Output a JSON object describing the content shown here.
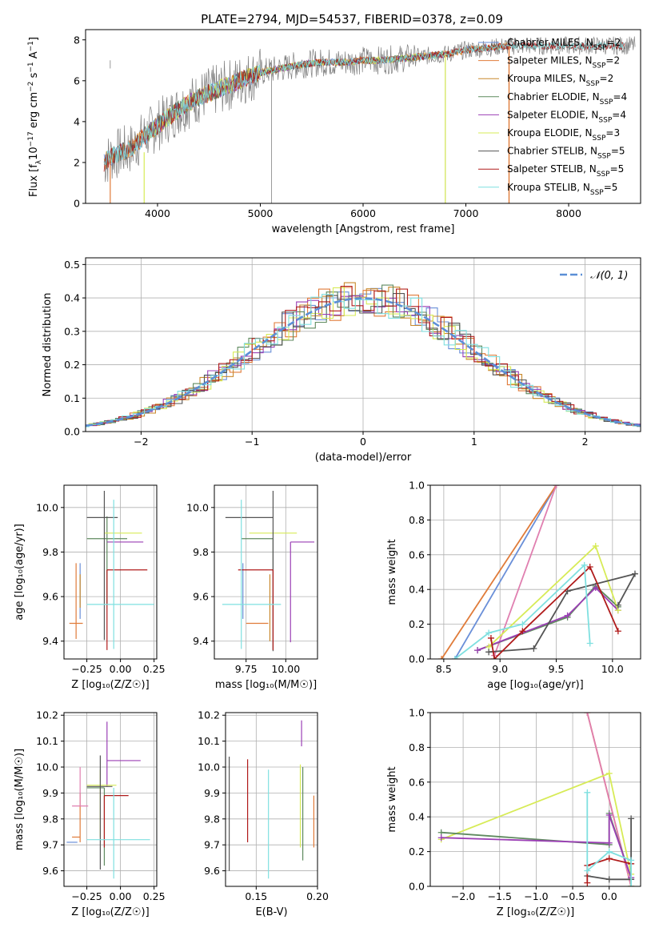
{
  "figure": {
    "title": "PLATE=2794, MJD=54537, FIBERID=0378, z=0.09",
    "colors": {
      "Chabrier MILES": "#6a8fd8",
      "Salpeter MILES": "#e07b39",
      "Kroupa MILES": "#c9892c",
      "Chabrier ELODIE": "#5f8a5f",
      "Salpeter ELODIE": "#9b3fb5",
      "Kroupa ELODIE": "#d7eb57",
      "Chabrier STELIB": "#555555",
      "Salpeter STELIB": "#b01b1b",
      "Kroupa STELIB": "#7fe0e0",
      "extra": "#e07fb0",
      "data": "#808080",
      "normal": "#5b8fd6"
    }
  },
  "chart_data": [
    {
      "id": "spectrum",
      "type": "line",
      "xlabel": "wavelength [Angstrom, rest frame]",
      "ylabel_parts": [
        "Flux [f",
        "λ",
        "10",
        "−17",
        " erg cm",
        "−2",
        " s",
        "−1",
        " A",
        "−1",
        "]"
      ],
      "xlim": [
        3300,
        8700
      ],
      "ylim": [
        0,
        8.5
      ],
      "xticks": [
        4000,
        5000,
        6000,
        7000,
        8000
      ],
      "yticks": [
        0,
        2,
        4,
        6,
        8
      ],
      "legend_location": "right",
      "legend": [
        {
          "name": "Chabrier MILES",
          "nssp": "2"
        },
        {
          "name": "Salpeter MILES",
          "nssp": "2"
        },
        {
          "name": "Kroupa MILES",
          "nssp": "2"
        },
        {
          "name": "Chabrier ELODIE",
          "nssp": "4"
        },
        {
          "name": "Salpeter ELODIE",
          "nssp": "4"
        },
        {
          "name": "Kroupa ELODIE",
          "nssp": "3"
        },
        {
          "name": "Chabrier STELIB",
          "nssp": "5"
        },
        {
          "name": "Salpeter STELIB",
          "nssp": "5"
        },
        {
          "name": "Kroupa STELIB",
          "nssp": "5"
        }
      ],
      "continuum": {
        "x": [
          3480,
          3550,
          3650,
          3750,
          3850,
          3950,
          4050,
          4150,
          4300,
          4450,
          4600,
          4800,
          5000,
          5200,
          5400,
          5600,
          5800,
          6000,
          6200,
          6400,
          6600,
          6800,
          7000,
          7200,
          7400
        ],
        "y": [
          2.0,
          2.3,
          2.5,
          2.7,
          3.2,
          3.6,
          4.0,
          4.4,
          4.9,
          5.3,
          5.6,
          6.0,
          6.4,
          6.6,
          6.8,
          6.9,
          6.9,
          7.0,
          7.0,
          7.1,
          7.2,
          7.3,
          7.5,
          7.6,
          7.7
        ]
      }
    },
    {
      "id": "residuals",
      "type": "line",
      "xlabel": "(data-model)/error",
      "ylabel": "Normed distribution",
      "xlim": [
        -2.5,
        2.5
      ],
      "ylim": [
        0,
        0.52
      ],
      "xticks": [
        -2,
        -1,
        0,
        1,
        2
      ],
      "xtick_labels": [
        "−2",
        "−1",
        "0",
        "1",
        "2"
      ],
      "yticks": [
        0.0,
        0.1,
        0.2,
        0.3,
        0.4,
        0.5
      ],
      "ytick_labels": [
        "0.0",
        "0.1",
        "0.2",
        "0.3",
        "0.4",
        "0.5"
      ],
      "grid": true,
      "legend_location": "top-right",
      "legend_label": "𝒩(0, 1)",
      "bin_width": 0.1
    },
    {
      "id": "age-vs-Z",
      "type": "scatter",
      "xlabel": "Z [log₁₀(Z/Z☉)]",
      "ylabel": "age  [log₁₀(age/yr)]",
      "xlim": [
        -0.42,
        0.27
      ],
      "ylim": [
        9.32,
        10.1
      ],
      "xticks": [
        -0.25,
        0.0,
        0.25
      ],
      "xtick_labels": [
        "−0.25",
        "0.00",
        "0.25"
      ],
      "yticks": [
        9.4,
        9.6,
        9.8,
        10.0
      ],
      "ytick_labels": [
        "9.4",
        "9.6",
        "9.8",
        "10.0"
      ],
      "points": [
        {
          "series": "Chabrier MILES",
          "x": -0.3,
          "xerr": [
            0.0,
            0.0
          ],
          "y": 9.7,
          "yerr": [
            0.2,
            0.05
          ]
        },
        {
          "series": "Salpeter MILES",
          "x": -0.33,
          "xerr": [
            0.05,
            0.05
          ],
          "y": 9.48,
          "yerr": [
            0.07,
            0.27
          ]
        },
        {
          "series": "Kroupa MILES",
          "x": -0.3,
          "xerr": [
            0.0,
            0.0
          ],
          "y": 9.6,
          "yerr": [
            0.05,
            0.1
          ]
        },
        {
          "series": "Chabrier ELODIE",
          "x": -0.1,
          "xerr": [
            0.15,
            0.15
          ],
          "y": 9.86,
          "yerr": [
            0.3,
            0.1
          ]
        },
        {
          "series": "Salpeter ELODIE",
          "x": -0.1,
          "xerr": [
            0.0,
            0.27
          ],
          "y": 9.845,
          "yerr": [
            0.0,
            0.0
          ]
        },
        {
          "series": "Kroupa ELODIE",
          "x": -0.12,
          "xerr": [
            0.0,
            0.28
          ],
          "y": 9.885,
          "yerr": [
            0.0,
            0.0
          ]
        },
        {
          "series": "Chabrier STELIB",
          "x": -0.12,
          "xerr": [
            0.13,
            0.1
          ],
          "y": 9.955,
          "yerr": [
            0.55,
            0.12
          ]
        },
        {
          "series": "Salpeter STELIB",
          "x": -0.1,
          "xerr": [
            0.0,
            0.3
          ],
          "y": 9.72,
          "yerr": [
            0.36,
            0.0
          ]
        },
        {
          "series": "Kroupa STELIB",
          "x": -0.05,
          "xerr": [
            0.2,
            0.3
          ],
          "y": 9.565,
          "yerr": [
            0.2,
            0.47
          ]
        }
      ],
      "grid": true
    },
    {
      "id": "age-vs-mass",
      "type": "scatter",
      "xlabel": "mass [log₁₀(M/M☉)]",
      "ylabel": "",
      "xlim": [
        9.55,
        10.2
      ],
      "ylim": [
        9.32,
        10.1
      ],
      "xticks": [
        9.75,
        10.0
      ],
      "xtick_labels": [
        "9.75",
        "10.00"
      ],
      "yticks": [
        9.4,
        9.6,
        9.8,
        10.0
      ],
      "ytick_labels": [
        "9.4",
        "9.6",
        "9.8",
        "10.0"
      ],
      "points": [
        {
          "series": "Chabrier MILES",
          "x": 9.73,
          "xerr": [
            0.0,
            0.0
          ],
          "y": 9.7,
          "yerr": [
            0.2,
            0.05
          ]
        },
        {
          "series": "Salpeter MILES",
          "x": 9.82,
          "xerr": [
            0.07,
            0.07
          ],
          "y": 9.48,
          "yerr": [
            0.0,
            0.0
          ]
        },
        {
          "series": "Kroupa MILES",
          "x": 9.9,
          "xerr": [
            0.0,
            0.0
          ],
          "y": 9.6,
          "yerr": [
            0.2,
            0.1
          ]
        },
        {
          "series": "Chabrier ELODIE",
          "x": 9.92,
          "xerr": [
            0.2,
            0.0
          ],
          "y": 9.86,
          "yerr": [
            0.5,
            0.0
          ]
        },
        {
          "series": "Salpeter ELODIE",
          "x": 10.03,
          "xerr": [
            0.0,
            0.15
          ],
          "y": 9.845,
          "yerr": [
            0.45,
            0.0
          ]
        },
        {
          "series": "Kroupa ELODIE",
          "x": 9.97,
          "xerr": [
            0.2,
            0.1
          ],
          "y": 9.885,
          "yerr": [
            0.0,
            0.0
          ]
        },
        {
          "series": "Chabrier STELIB",
          "x": 9.92,
          "xerr": [
            0.3,
            0.0
          ],
          "y": 9.955,
          "yerr": [
            0.6,
            0.12
          ]
        },
        {
          "series": "Salpeter STELIB",
          "x": 9.92,
          "xerr": [
            0.22,
            0.0
          ],
          "y": 9.72,
          "yerr": [
            0.36,
            0.0
          ]
        },
        {
          "series": "Kroupa STELIB",
          "x": 9.72,
          "xerr": [
            0.12,
            0.25
          ],
          "y": 9.565,
          "yerr": [
            0.2,
            0.47
          ]
        }
      ],
      "grid": true
    },
    {
      "id": "weight-vs-age",
      "type": "line",
      "xlabel": "age  [log₁₀(age/yr)]",
      "ylabel": "mass weight",
      "xlim": [
        8.38,
        10.25
      ],
      "ylim": [
        0,
        1.0
      ],
      "xticks": [
        8.5,
        9.0,
        9.5,
        10.0
      ],
      "xtick_labels": [
        "8.5",
        "9.0",
        "9.5",
        "10.0"
      ],
      "yticks": [
        0.0,
        0.2,
        0.4,
        0.6,
        0.8,
        1.0
      ],
      "ytick_labels": [
        "0.0",
        "0.2",
        "0.4",
        "0.6",
        "0.8",
        "1.0"
      ],
      "series": [
        {
          "name": "Chabrier MILES",
          "x": [
            8.6,
            9.5
          ],
          "y": [
            0.0,
            1.0
          ]
        },
        {
          "name": "Salpeter MILES",
          "x": [
            8.48,
            9.5
          ],
          "y": [
            0.0,
            1.0
          ]
        },
        {
          "name": "extra",
          "x": [
            8.95,
            9.5
          ],
          "y": [
            0.02,
            1.0
          ]
        },
        {
          "name": "Chabrier ELODIE",
          "x": [
            8.8,
            9.6,
            9.85,
            10.05
          ],
          "y": [
            0.05,
            0.24,
            0.42,
            0.3
          ]
        },
        {
          "name": "Salpeter ELODIE",
          "x": [
            8.8,
            9.6,
            9.85,
            10.05
          ],
          "y": [
            0.05,
            0.25,
            0.41,
            0.28
          ]
        },
        {
          "name": "Kroupa ELODIE",
          "x": [
            8.9,
            9.85,
            10.05
          ],
          "y": [
            0.07,
            0.65,
            0.28
          ]
        },
        {
          "name": "Chabrier STELIB",
          "x": [
            8.9,
            9.3,
            9.6,
            10.2,
            10.05
          ],
          "y": [
            0.04,
            0.06,
            0.39,
            0.49,
            0.31
          ]
        },
        {
          "name": "Salpeter STELIB",
          "x": [
            8.92,
            8.95,
            9.2,
            9.8,
            10.05
          ],
          "y": [
            0.12,
            0.0,
            0.16,
            0.53,
            0.16
          ]
        },
        {
          "name": "Kroupa STELIB",
          "x": [
            8.6,
            8.9,
            9.2,
            9.75,
            9.8
          ],
          "y": [
            0.0,
            0.15,
            0.2,
            0.54,
            0.09
          ]
        }
      ],
      "grid": true
    },
    {
      "id": "mass-vs-Z",
      "type": "scatter",
      "xlabel": "Z [log₁₀(Z/Z☉)]",
      "ylabel": "mass [log₁₀(M/M☉)]",
      "xlim": [
        -0.42,
        0.27
      ],
      "ylim": [
        9.54,
        10.21
      ],
      "xticks": [
        -0.25,
        0.0,
        0.25
      ],
      "xtick_labels": [
        "−0.25",
        "0.00",
        "0.25"
      ],
      "yticks": [
        9.6,
        9.7,
        9.8,
        9.9,
        10.0,
        10.1,
        10.2
      ],
      "ytick_labels": [
        "9.6",
        "9.7",
        "9.8",
        "9.9",
        "10.0",
        "10.1",
        "10.2"
      ],
      "points": [
        {
          "series": "Chabrier MILES",
          "x": -0.32,
          "xerr": [
            0.08,
            0.0
          ],
          "y": 9.71,
          "yerr": [
            0.0,
            0.0
          ]
        },
        {
          "series": "Salpeter MILES",
          "x": -0.3,
          "xerr": [
            0.06,
            0.0
          ],
          "y": 9.73,
          "yerr": [
            0.02,
            0.17
          ]
        },
        {
          "series": "extra",
          "x": -0.3,
          "xerr": [
            0.06,
            0.06
          ],
          "y": 9.85,
          "yerr": [
            0.0,
            0.15
          ]
        },
        {
          "series": "Chabrier ELODIE",
          "x": -0.12,
          "xerr": [
            0.13,
            0.0
          ],
          "y": 9.92,
          "yerr": [
            0.3,
            0.0
          ]
        },
        {
          "series": "Salpeter ELODIE",
          "x": -0.1,
          "xerr": [
            0.0,
            0.25
          ],
          "y": 10.025,
          "yerr": [
            0.1,
            0.15
          ]
        },
        {
          "series": "Kroupa ELODIE",
          "x": -0.15,
          "xerr": [
            0.1,
            0.12
          ],
          "y": 9.93,
          "yerr": [
            0.2,
            0.06
          ]
        },
        {
          "series": "Chabrier STELIB",
          "x": -0.15,
          "xerr": [
            0.1,
            0.09
          ],
          "y": 9.925,
          "yerr": [
            0.32,
            0.12
          ]
        },
        {
          "series": "Salpeter STELIB",
          "x": -0.12,
          "xerr": [
            0.0,
            0.18
          ],
          "y": 9.89,
          "yerr": [
            0.2,
            0.0
          ]
        },
        {
          "series": "Kroupa STELIB",
          "x": -0.05,
          "xerr": [
            0.2,
            0.27
          ],
          "y": 9.72,
          "yerr": [
            0.15,
            0.2
          ]
        }
      ],
      "grid": true
    },
    {
      "id": "mass-vs-ebv",
      "type": "scatter",
      "xlabel": "E(B-V)",
      "ylabel": "",
      "xlim": [
        0.125,
        0.2
      ],
      "ylim": [
        9.54,
        10.21
      ],
      "xticks": [
        0.15,
        0.2
      ],
      "xtick_labels": [
        "0.15",
        "0.20"
      ],
      "yticks": [
        9.6,
        9.7,
        9.8,
        9.9,
        10.0,
        10.1,
        10.2
      ],
      "ytick_labels": [
        "9.6",
        "9.7",
        "9.8",
        "9.9",
        "10.0",
        "10.1",
        "10.2"
      ],
      "points": [
        {
          "series": "Chabrier STELIB",
          "x": 0.128,
          "xerr": [
            0,
            0
          ],
          "y": 9.82,
          "yerr": [
            0.22,
            0.22
          ]
        },
        {
          "series": "Salpeter STELIB",
          "x": 0.143,
          "xerr": [
            0,
            0
          ],
          "y": 9.87,
          "yerr": [
            0.16,
            0.16
          ]
        },
        {
          "series": "Kroupa STELIB",
          "x": 0.16,
          "xerr": [
            0,
            0
          ],
          "y": 9.79,
          "yerr": [
            0.22,
            0.2
          ]
        },
        {
          "series": "Kroupa ELODIE",
          "x": 0.186,
          "xerr": [
            0,
            0
          ],
          "y": 9.85,
          "yerr": [
            0.16,
            0.16
          ]
        },
        {
          "series": "Salpeter ELODIE",
          "x": 0.187,
          "xerr": [
            0,
            0
          ],
          "y": 10.12,
          "yerr": [
            0.04,
            0.06
          ]
        },
        {
          "series": "Chabrier ELODIE",
          "x": 0.188,
          "xerr": [
            0,
            0
          ],
          "y": 9.8,
          "yerr": [
            0.16,
            0.2
          ]
        },
        {
          "series": "Salpeter MILES",
          "x": 0.197,
          "xerr": [
            0,
            0
          ],
          "y": 9.79,
          "yerr": [
            0.1,
            0.1
          ]
        }
      ],
      "grid": true
    },
    {
      "id": "weight-vs-Z",
      "type": "line",
      "xlabel": "Z [log₁₀(Z/Z☉)]",
      "ylabel": "mass weight",
      "xlim": [
        -2.45,
        0.43
      ],
      "ylim": [
        0,
        1.0
      ],
      "xticks": [
        -2.0,
        -1.5,
        -1.0,
        -0.5,
        0.0
      ],
      "xtick_labels": [
        "−2.0",
        "−1.5",
        "−1.0",
        "−0.5",
        "0.0"
      ],
      "yticks": [
        0.0,
        0.2,
        0.4,
        0.6,
        0.8,
        1.0
      ],
      "ytick_labels": [
        "0.0",
        "0.2",
        "0.4",
        "0.6",
        "0.8",
        "1.0"
      ],
      "series": [
        {
          "name": "Salpeter MILES",
          "x": [
            -0.3,
            0.3
          ],
          "y": [
            1.0,
            0.0
          ]
        },
        {
          "name": "extra",
          "x": [
            -0.3,
            0.3
          ],
          "y": [
            1.0,
            0.0
          ]
        },
        {
          "name": "Kroupa ELODIE",
          "x": [
            -2.3,
            0.0,
            0.3,
            0.3
          ],
          "y": [
            0.27,
            0.65,
            0.07,
            0.0
          ]
        },
        {
          "name": "Chabrier ELODIE",
          "x": [
            -2.3,
            0.0,
            0.0,
            0.3
          ],
          "y": [
            0.31,
            0.24,
            0.42,
            0.05
          ]
        },
        {
          "name": "Salpeter ELODIE",
          "x": [
            -2.3,
            0.0,
            0.0,
            0.3
          ],
          "y": [
            0.28,
            0.25,
            0.41,
            0.05
          ]
        },
        {
          "name": "Chabrier STELIB",
          "x": [
            -0.3,
            0.0,
            0.3,
            0.3
          ],
          "y": [
            0.06,
            0.04,
            0.04,
            0.39
          ]
        },
        {
          "name": "Salpeter STELIB",
          "x": [
            -0.3,
            -0.3,
            0.0,
            0.3
          ],
          "y": [
            0.02,
            0.12,
            0.16,
            0.13
          ]
        },
        {
          "name": "Kroupa STELIB",
          "x": [
            -0.3,
            -0.3,
            0.0,
            0.3,
            0.3
          ],
          "y": [
            0.54,
            0.09,
            0.2,
            0.15,
            0.0
          ]
        }
      ],
      "grid": true
    }
  ]
}
